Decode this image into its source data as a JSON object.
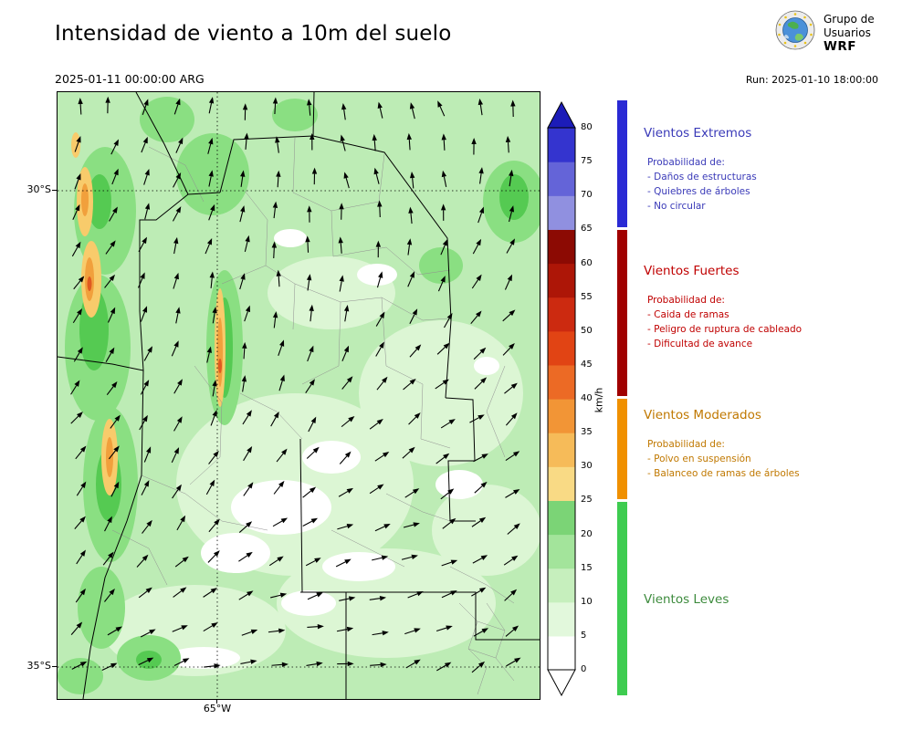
{
  "header": {
    "title": "Intensidad de viento a 10m del suelo",
    "valid_datetime": "2025-01-11 00:00:00 ARG",
    "run_label": "Run: 2025-01-10 18:00:00",
    "logo": {
      "line1": "Grupo de",
      "line2": "Usuarios",
      "line3": "WRF"
    }
  },
  "map": {
    "lat_labels": [
      "30°S",
      "35°S"
    ],
    "lon_label": "65°W"
  },
  "colorbar": {
    "unit": "km/h",
    "tick_labels": [
      "0",
      "5",
      "10",
      "15",
      "20",
      "25",
      "30",
      "35",
      "40",
      "45",
      "50",
      "55",
      "60",
      "65",
      "70",
      "75",
      "80"
    ],
    "segment_colors_bottom_to_top": [
      "#ffffff",
      "#e2f8dc",
      "#c6efbd",
      "#a3e49b",
      "#7bd476",
      "#f9da85",
      "#f6bb59",
      "#f29536",
      "#ec6a25",
      "#e14414",
      "#cc2a10",
      "#ad1607",
      "#8c0a03",
      "#9090e0",
      "#6464d8",
      "#3434cf"
    ],
    "over_color": "#1c1cb8",
    "under_color": "#ffffff"
  },
  "legend": {
    "sections": [
      {
        "title": "Vientos Extremos",
        "bar_color": "#2a2ad4",
        "text_color": "#3a3ab8",
        "prob_label": "Probabilidad de:",
        "items": [
          "- Daños de estructuras",
          "- Quiebres de árboles",
          "- No circular"
        ]
      },
      {
        "title": "Vientos Fuertes",
        "bar_color": "#a00000",
        "text_color": "#c00000",
        "prob_label": "Probabilidad de:",
        "items": [
          "- Caida de ramas",
          "- Peligro de ruptura de cableado",
          "- Dificultad de avance"
        ]
      },
      {
        "title": "Vientos Moderados",
        "bar_color": "#f09000",
        "text_color": "#c07800",
        "prob_label": "Probabilidad de:",
        "items": [
          "- Polvo en suspensión",
          "- Balanceo de ramas de árboles"
        ]
      },
      {
        "title": "Vientos Leves",
        "bar_color": "#3ecc50",
        "text_color": "#3d8b3d",
        "prob_label": "",
        "items": []
      }
    ]
  }
}
